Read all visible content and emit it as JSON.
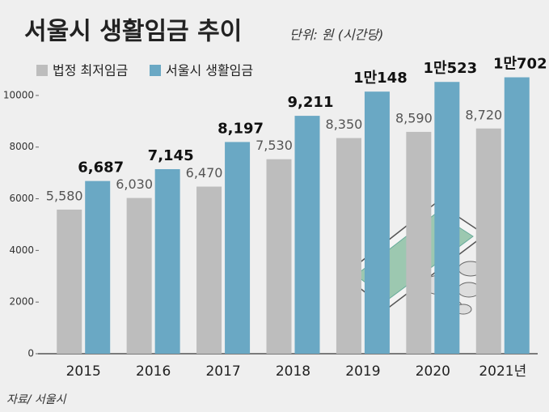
{
  "chart_data": {
    "type": "bar",
    "title": "서울시 생활임금 추이",
    "subtitle": "단위: 원 (시간당)",
    "source": "자료/ 서울시",
    "categories": [
      "2015",
      "2016",
      "2017",
      "2018",
      "2019",
      "2020",
      "2021년"
    ],
    "series": [
      {
        "name": "법정 최저임금",
        "color": "#bdbdbd",
        "values": [
          5580,
          6030,
          6470,
          7530,
          8350,
          8590,
          8720
        ],
        "value_labels": [
          "5,580",
          "6,030",
          "6,470",
          "7,530",
          "8,350",
          "8,590",
          "8,720"
        ]
      },
      {
        "name": "서울시 생활임금",
        "color": "#6aa8c4",
        "values": [
          6687,
          7145,
          8197,
          9211,
          10148,
          10523,
          10702
        ],
        "value_labels": [
          "6,687",
          "7,145",
          "8,197",
          "9,211",
          "1만148",
          "1만523",
          "1만702"
        ]
      }
    ],
    "ylim": [
      0,
      11000
    ],
    "yticks": [
      0,
      2000,
      4000,
      6000,
      8000,
      10000
    ],
    "grid": false
  }
}
